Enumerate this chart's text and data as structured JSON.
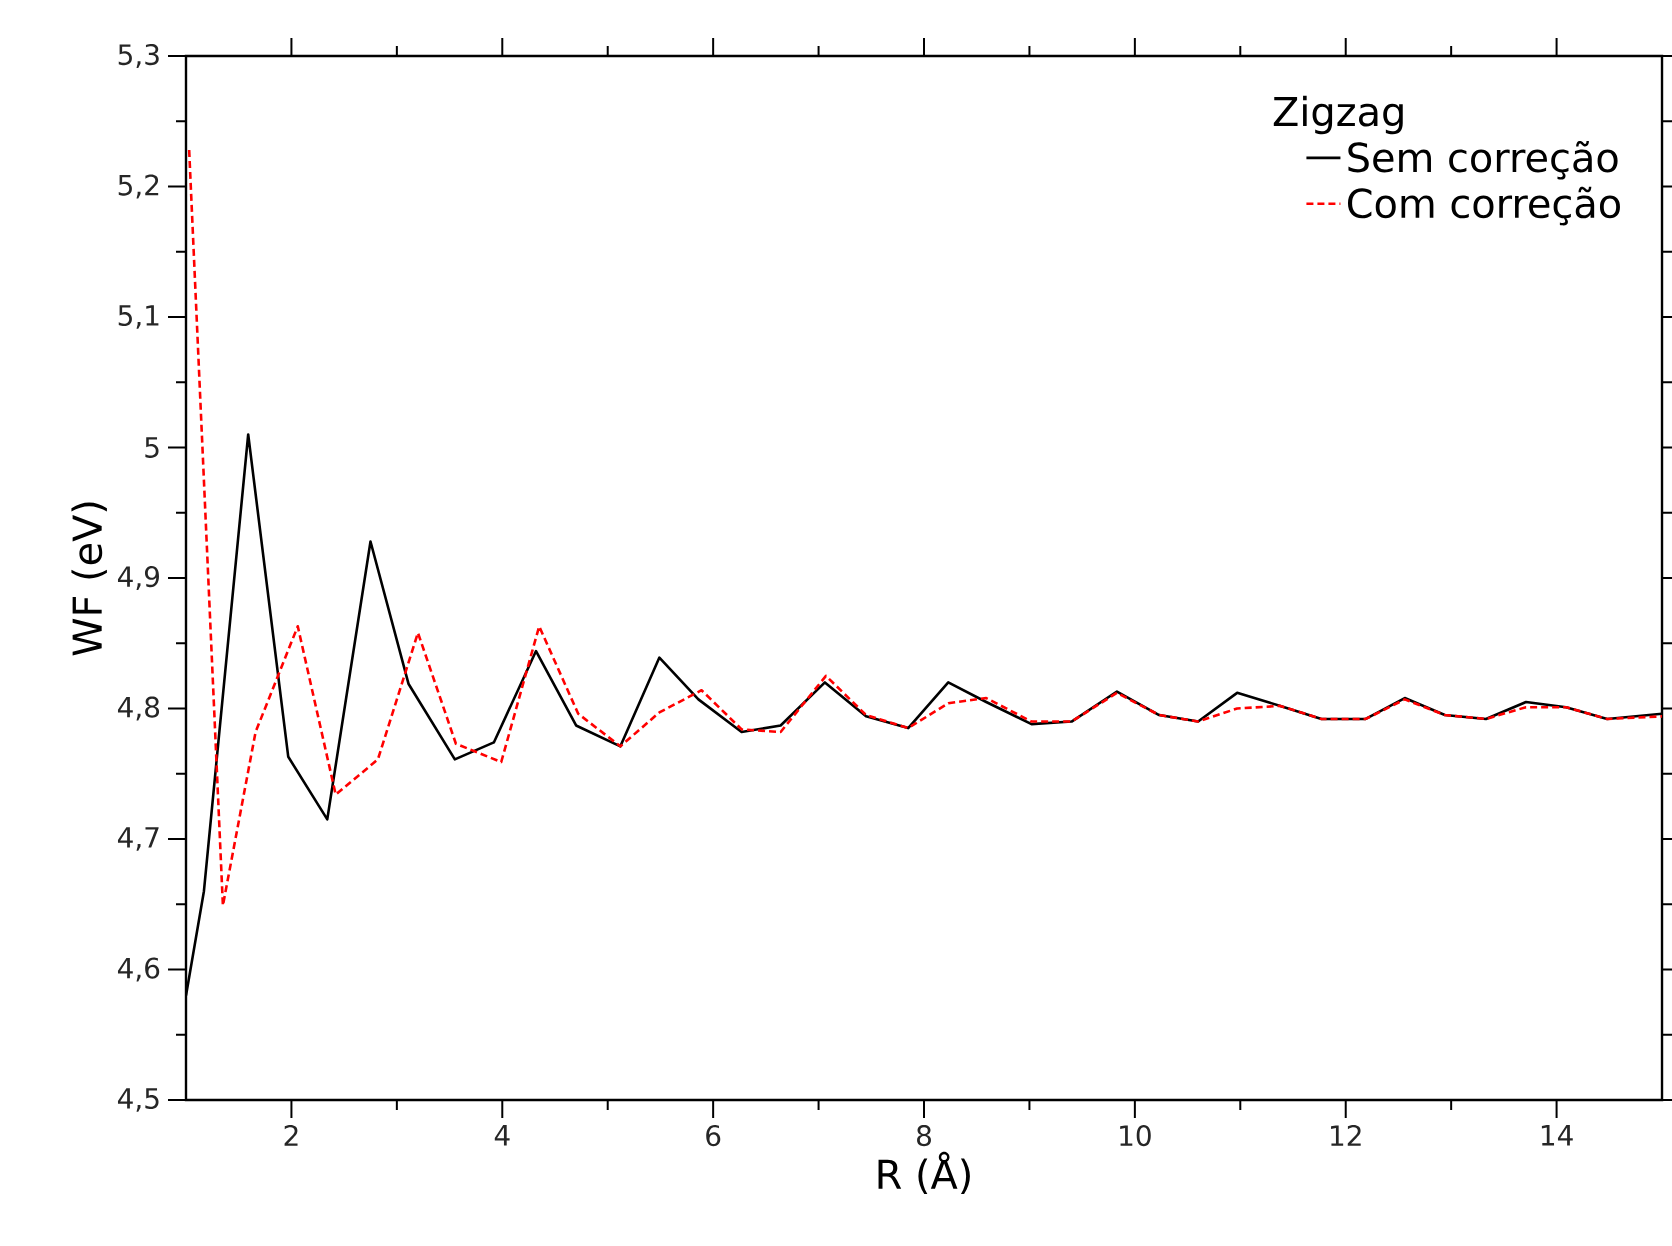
{
  "chart_data": {
    "type": "line",
    "xlabel": "R (Å)",
    "ylabel": "WF (eV)",
    "legend_title": "Zigzag",
    "legend": "top right",
    "grid": false,
    "marker": "none",
    "xlim": [
      1,
      15
    ],
    "xticks": [
      2,
      4,
      6,
      8,
      10,
      12,
      14
    ],
    "ylim": [
      4.5,
      5.3
    ],
    "yticks": [
      {
        "value": 4.5,
        "label": "4,5"
      },
      {
        "value": 4.6,
        "label": "4,6"
      },
      {
        "value": 4.7,
        "label": "4,7"
      },
      {
        "value": 4.8,
        "label": "4,8"
      },
      {
        "value": 4.9,
        "label": "4,9"
      },
      {
        "value": 5,
        "label": "5"
      },
      {
        "value": 5.1,
        "label": "5,1"
      },
      {
        "value": 5.2,
        "label": "5,2"
      },
      {
        "value": 5.3,
        "label": "5,3"
      }
    ],
    "series": [
      {
        "name": "Sem correção",
        "color": "#000000",
        "line_style": "solid",
        "x": [
          1.0,
          1.17,
          1.59,
          1.97,
          2.34,
          2.75,
          3.11,
          3.55,
          3.92,
          4.32,
          4.7,
          5.12,
          5.49,
          5.86,
          6.27,
          6.64,
          7.06,
          7.45,
          7.85,
          8.23,
          8.59,
          9.02,
          9.4,
          9.83,
          10.23,
          10.6,
          10.97,
          11.38,
          11.77,
          12.19,
          12.56,
          12.94,
          13.33,
          13.71,
          14.09,
          14.48,
          15.0
        ],
        "values": [
          4.58,
          4.66,
          5.01,
          4.763,
          4.715,
          4.928,
          4.819,
          4.761,
          4.774,
          4.844,
          4.787,
          4.771,
          4.839,
          4.807,
          4.782,
          4.787,
          4.82,
          4.794,
          4.785,
          4.82,
          4.805,
          4.788,
          4.79,
          4.813,
          4.795,
          4.79,
          4.812,
          4.802,
          4.792,
          4.792,
          4.808,
          4.795,
          4.792,
          4.805,
          4.801,
          4.792,
          4.796
        ]
      },
      {
        "name": "Com correção",
        "color": "#ff0000",
        "line_style": "dashed",
        "x": [
          1.03,
          1.35,
          1.66,
          2.06,
          2.42,
          2.82,
          3.2,
          3.56,
          3.99,
          4.35,
          4.72,
          5.12,
          5.49,
          5.89,
          6.27,
          6.64,
          7.07,
          7.45,
          7.85,
          8.23,
          8.59,
          9.02,
          9.4,
          9.83,
          10.23,
          10.6,
          10.97,
          11.38,
          11.77,
          12.19,
          12.56,
          12.94,
          13.33,
          13.71,
          14.09,
          14.48,
          15.0
        ],
        "values": [
          5.228,
          4.649,
          4.782,
          4.863,
          4.734,
          4.761,
          4.858,
          4.773,
          4.759,
          4.863,
          4.796,
          4.771,
          4.797,
          4.814,
          4.784,
          4.782,
          4.825,
          4.795,
          4.785,
          4.804,
          4.808,
          4.79,
          4.79,
          4.812,
          4.795,
          4.79,
          4.8,
          4.802,
          4.792,
          4.792,
          4.807,
          4.795,
          4.792,
          4.801,
          4.801,
          4.792,
          4.794
        ]
      }
    ]
  }
}
